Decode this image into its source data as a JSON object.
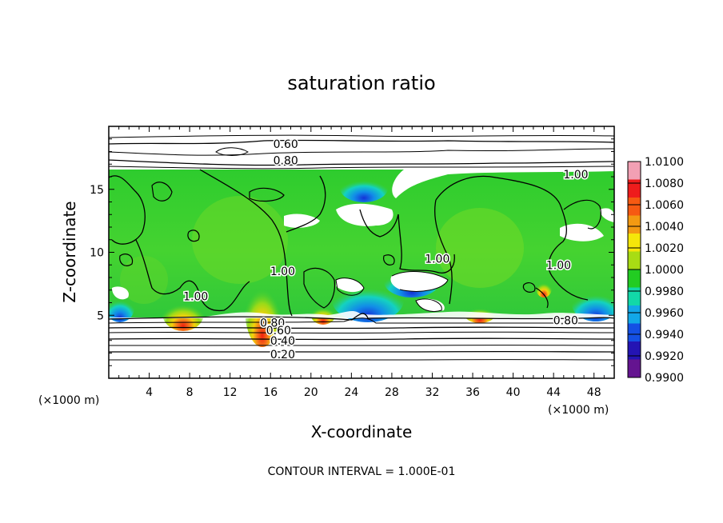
{
  "chart_data": {
    "type": "heatmap",
    "title": "saturation ratio",
    "xlabel": "X-coordinate",
    "ylabel": "Z-coordinate",
    "x_unit": "(×1000 m)",
    "z_unit": "(×1000 m)",
    "xlim": [
      0,
      50
    ],
    "ylim": [
      0,
      20
    ],
    "x_ticks": [
      4,
      8,
      12,
      16,
      20,
      24,
      28,
      32,
      36,
      40,
      44,
      48
    ],
    "y_ticks": [
      5,
      10,
      15
    ],
    "footer": "CONTOUR INTERVAL = 1.000E-01",
    "contour_interval": 0.1,
    "contour_labels": [
      {
        "text": "0.60",
        "x": 17.5,
        "z": 18.6
      },
      {
        "text": "0.80",
        "x": 17.5,
        "z": 17.3
      },
      {
        "text": "1.00",
        "x": 46.2,
        "z": 16.2
      },
      {
        "text": "1.00",
        "x": 8.6,
        "z": 6.5
      },
      {
        "text": "1.00",
        "x": 17.2,
        "z": 8.5
      },
      {
        "text": "1.00",
        "x": 32.5,
        "z": 9.5
      },
      {
        "text": "1.00",
        "x": 44.5,
        "z": 9.0
      },
      {
        "text": "0.80",
        "x": 16.2,
        "z": 4.4
      },
      {
        "text": "0.60",
        "x": 16.8,
        "z": 3.8
      },
      {
        "text": "0.40",
        "x": 17.2,
        "z": 3.0
      },
      {
        "text": "0.20",
        "x": 17.2,
        "z": 1.9
      },
      {
        "text": "0.80",
        "x": 45.2,
        "z": 4.6
      }
    ],
    "colorbar": {
      "levels": [
        "1.0100",
        "1.0080",
        "1.0060",
        "1.0040",
        "1.0020",
        "1.0000",
        "0.9980",
        "0.9960",
        "0.9940",
        "0.9920",
        "0.9900"
      ],
      "colors": [
        "#f2a0b4",
        "#ee1c1c",
        "#f65a12",
        "#f39a12",
        "#f5e60a",
        "#a8dc14",
        "#22cc22",
        "#12d8a8",
        "#12a8e8",
        "#1450e4",
        "#2414b4",
        "#641490"
      ]
    },
    "cloud_top_z": 16.4,
    "cloud_base_z": 4.8
  }
}
